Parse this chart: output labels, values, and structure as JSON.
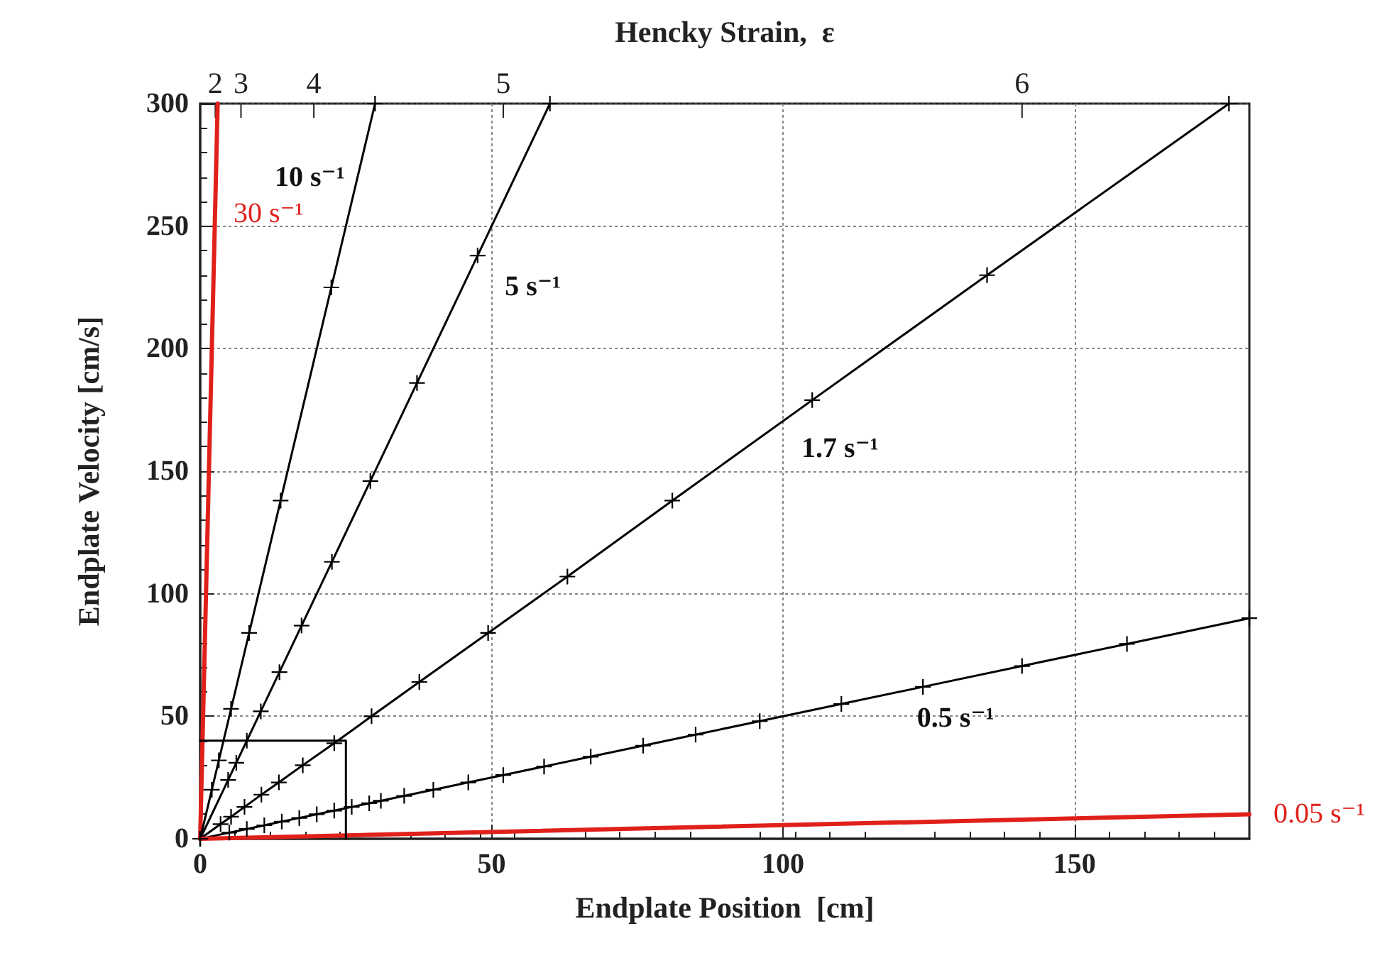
{
  "chart_data": {
    "type": "line",
    "xlabel": "Endplate Position  [cm]",
    "ylabel": "Endplate Velocity [cm/s]",
    "x2label": "Hencky Strain,  ε",
    "xlim": [
      0,
      180
    ],
    "xticks": [
      0,
      50,
      100,
      150
    ],
    "ylim": [
      0,
      300
    ],
    "yticks": [
      0,
      50,
      100,
      150,
      200,
      250,
      300
    ],
    "annotations": [
      {
        "text": "2",
        "x": 2.6
      },
      {
        "text": "3",
        "x": 7
      },
      {
        "text": "4",
        "x": 19.5
      },
      {
        "text": "5",
        "x": 52
      },
      {
        "text": "6",
        "x": 141
      }
    ],
    "grid": true,
    "legend": false,
    "marker": "cross",
    "line_style": "solid",
    "series": [
      {
        "name": "30 s⁻¹",
        "color": "#e0201b",
        "x": [
          0,
          3
        ],
        "values": [
          0,
          300
        ],
        "marker": "none"
      },
      {
        "name": "10 s⁻¹",
        "color": "#000000",
        "x": [
          0,
          2,
          3.2,
          5.3,
          8.4,
          13.8,
          22.5,
          30
        ],
        "values": [
          0,
          20,
          32,
          53,
          84,
          138,
          225,
          300
        ]
      },
      {
        "name": "5 s⁻¹",
        "color": "#000000",
        "x": [
          0,
          4.8,
          6.2,
          8,
          10.4,
          13.6,
          17.4,
          22.6,
          29.2,
          37.2,
          47.6,
          60
        ],
        "values": [
          0,
          24,
          31,
          40,
          52,
          68,
          87,
          113,
          146,
          186,
          238,
          300
        ]
      },
      {
        "name": "1.7 s⁻¹",
        "color": "#000000",
        "x": [
          0,
          3.5,
          5.3,
          7.6,
          10.5,
          13.5,
          17.6,
          23,
          29.4,
          37.6,
          49.4,
          63,
          81,
          105,
          135,
          176.5
        ],
        "values": [
          0,
          6,
          9,
          13,
          18,
          23,
          30,
          39,
          50,
          64,
          84,
          107,
          138,
          179,
          230,
          300
        ]
      },
      {
        "name": "0.5 s⁻¹",
        "color": "#000000",
        "x": [
          0,
          5,
          8,
          11,
          14,
          17,
          20,
          23,
          26,
          29,
          31,
          35,
          40,
          46,
          52,
          59,
          67,
          76,
          85,
          96,
          110,
          124,
          141,
          159,
          180
        ],
        "values": [
          0,
          2.5,
          4,
          5.5,
          7,
          8.5,
          10,
          11.5,
          13,
          14.5,
          15.5,
          17.5,
          20,
          23,
          26,
          29.5,
          33.5,
          38,
          42.5,
          48,
          55,
          62,
          70.5,
          79.5,
          90
        ]
      },
      {
        "name": "0.05 s⁻¹",
        "color": "#e0201b",
        "x": [
          0,
          180
        ],
        "values": [
          0,
          10
        ],
        "marker": "none"
      },
      {
        "color": "#000000",
        "x": [
          0,
          25,
          25
        ],
        "values": [
          40,
          40,
          0
        ],
        "marker": "none"
      }
    ]
  }
}
